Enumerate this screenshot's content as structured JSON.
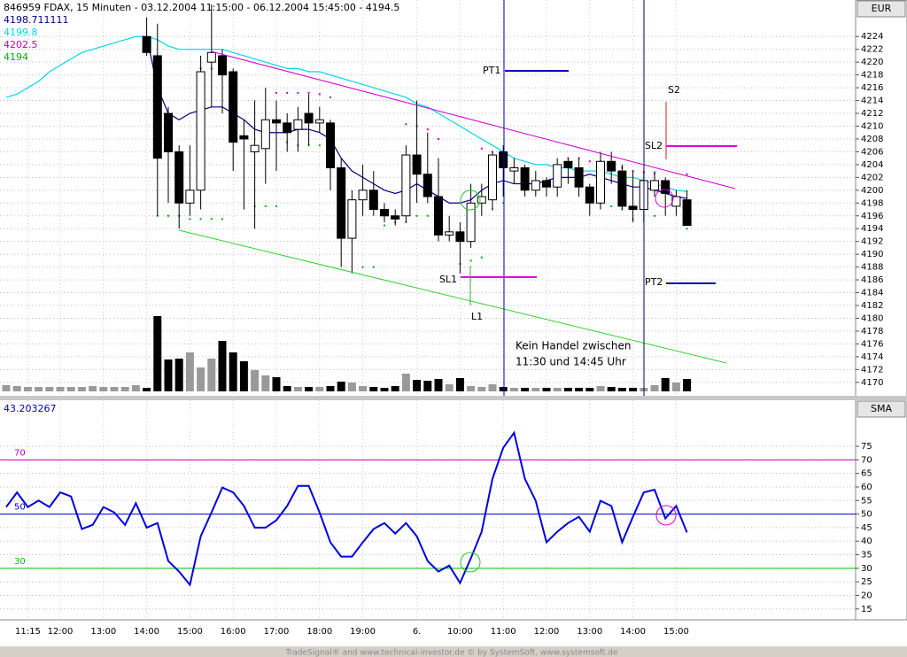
{
  "chart_data": {
    "type": "candlestick",
    "title": "846959 FDAX, 15 Minuten - 03.12.2004 11:15:00 - 06.12.2004 15:45:00 - 4194.5",
    "currency": "EUR",
    "indicator_title": "SMA",
    "footer": "TradeSignal® and www.technical-investor.de © by SystemSoft, www.systemsoft.de",
    "categories": [
      null,
      null,
      "11:15",
      null,
      null,
      "12:00",
      null,
      null,
      null,
      "13:00",
      null,
      null,
      null,
      "14:00",
      null,
      null,
      null,
      "15:00",
      null,
      null,
      null,
      "16:00",
      null,
      null,
      null,
      "17:00",
      null,
      null,
      null,
      "18:00",
      null,
      null,
      null,
      "19:00",
      null,
      null,
      null,
      null,
      "6.",
      null,
      null,
      null,
      "10:00",
      null,
      null,
      null,
      "11:00",
      null,
      null,
      null,
      "12:00",
      null,
      null,
      null,
      "13:00",
      null,
      null,
      null,
      "14:00",
      null,
      null,
      null,
      "15:00",
      null
    ],
    "open": [
      null,
      null,
      null,
      null,
      null,
      null,
      null,
      null,
      null,
      null,
      null,
      null,
      null,
      4224,
      4221,
      4212,
      4206,
      4198,
      4200,
      4220,
      4221,
      4218.5,
      4208.5,
      4206,
      4206.5,
      4211,
      4210.5,
      4209.5,
      4212,
      4210.5,
      4210.5,
      4203.5,
      4192.5,
      4198.5,
      4200,
      4197,
      4196,
      4196,
      4205.5,
      4202.5,
      4199,
      4193,
      4193.5,
      4192,
      4198,
      4198.5,
      4206,
      4203,
      4203.5,
      4200,
      4201.5,
      4200.5,
      4204.5,
      4203.5,
      4200.5,
      4198,
      4204.5,
      4203,
      4197.5,
      4197,
      4200,
      4201.5,
      4197.5,
      4198.5
    ],
    "high": [
      null,
      null,
      null,
      null,
      null,
      null,
      null,
      null,
      null,
      null,
      null,
      null,
      null,
      4227,
      4226,
      4213,
      4207,
      4207,
      4221,
      4229,
      4222,
      4219,
      4211,
      4214,
      4216,
      4214,
      4212,
      4213,
      4215,
      4213,
      4211,
      4205,
      4200,
      4204,
      4203,
      4198,
      4197,
      4207,
      4214,
      4209,
      4205,
      4196,
      4195,
      4201,
      4201,
      4206,
      4207,
      4205,
      4204,
      4203,
      4202,
      4205,
      4205,
      4205,
      4201,
      4206,
      4206,
      4204,
      4203,
      4203,
      4203,
      4202,
      4200,
      4200
    ],
    "low": [
      null,
      null,
      null,
      null,
      null,
      null,
      null,
      null,
      null,
      null,
      null,
      null,
      null,
      4221,
      4196,
      4198,
      4194,
      4196,
      4197,
      4213,
      4212,
      4203,
      4197,
      4194,
      4201,
      4203,
      4206,
      4206,
      4207,
      4209,
      4200,
      4188,
      4187,
      4196,
      4196,
      4195,
      4194.5,
      4195,
      4198,
      4198,
      4192,
      4192,
      4187,
      4191,
      4196,
      4197,
      4199,
      4201,
      4199,
      4199,
      4199,
      4199,
      4201,
      4199,
      4196,
      4197,
      4201,
      4197,
      4195,
      4195,
      4199,
      4196,
      4196,
      4194.5
    ],
    "close": [
      null,
      null,
      null,
      null,
      null,
      null,
      null,
      null,
      null,
      null,
      null,
      null,
      null,
      4221.5,
      4205,
      4206,
      4198,
      4200,
      4218.5,
      4221.5,
      4218,
      4207.5,
      4208,
      4207,
      4211,
      4210.5,
      4209,
      4211,
      4210.5,
      4211,
      4203.5,
      4192.5,
      4198.5,
      4200,
      4197,
      4196,
      4195.5,
      4205.5,
      4202.5,
      4199,
      4193,
      4193.5,
      4192,
      4198,
      4199,
      4205.5,
      4203.5,
      4203.5,
      4200,
      4201.5,
      4200.5,
      4204,
      4203.5,
      4200.5,
      4198,
      4204.5,
      4203,
      4197.5,
      4197,
      4201.5,
      4201.5,
      4199.5,
      4199,
      4194.5
    ],
    "volume": [
      7,
      6,
      5,
      5,
      5,
      5,
      5,
      5,
      6,
      5,
      5,
      5,
      7,
      4,
      85,
      36,
      37,
      44,
      27,
      37,
      57,
      44,
      34,
      24,
      18,
      16,
      6,
      5,
      5,
      5,
      6,
      11,
      10,
      6,
      5,
      4,
      6,
      20,
      13,
      12,
      14,
      8,
      15,
      6,
      5,
      8,
      5,
      4,
      4,
      4,
      4,
      4,
      4,
      4,
      4,
      6,
      5,
      4,
      4,
      4,
      7,
      15,
      10,
      14
    ],
    "up_color": "#ffffff",
    "down_color": "#000000",
    "volume_up_color": "#9a9a9a",
    "volume_down_color": "#000000",
    "overlays": [
      {
        "name": "4198.711111",
        "color": "#000080",
        "style": "line",
        "values": [
          null,
          null,
          null,
          null,
          null,
          null,
          null,
          null,
          null,
          null,
          null,
          null,
          null,
          4224,
          4216,
          4212,
          4211,
          4212,
          4212.5,
          4213,
          4213,
          4212,
          4211,
          4209.5,
          4209,
          4209,
          4209,
          4209.5,
          4209.5,
          4209,
          4208,
          4205,
          4203,
          4202,
          4201,
          4200,
          4199.5,
          4200,
          4201,
          4200,
          4199,
          4198,
          4198,
          4198.5,
          4200,
          4201,
          4201.5,
          4201,
          4201,
          4201,
          4201.5,
          4202,
          4202,
          4202,
          4202.5,
          4202,
          4201.5,
          4201,
          4200.5,
          4200.5,
          4200,
          4199.5,
          4199,
          4198.711111
        ]
      },
      {
        "name": "4199.8",
        "color": "#00d8e8",
        "style": "line",
        "values": [
          4214.5,
          4215,
          4216,
          4217,
          4218.5,
          4219.5,
          4220.5,
          4221.5,
          4222,
          4222.5,
          4223,
          4223.5,
          4224,
          4224,
          4223.5,
          4222.5,
          4222,
          4222,
          4222,
          4222,
          4222,
          4221.5,
          4221,
          4220.5,
          4220,
          4219.5,
          4219,
          4219,
          4218.5,
          4218.5,
          4218,
          4217.5,
          4217,
          4216.5,
          4216,
          4215.5,
          4215,
          4214.5,
          4213.5,
          4213,
          4212,
          4211,
          4210,
          4209,
          4208,
          4207,
          4206,
          4205,
          4204.5,
          4204,
          4204,
          4203.5,
          4203.5,
          4203,
          4203,
          4203,
          4202.5,
          4202,
          4202,
          4201.5,
          4201,
          4200.5,
          4200,
          4199.8
        ]
      },
      {
        "name": "4202.5",
        "color": "#c000c0",
        "style": "dots",
        "values": [
          null,
          null,
          null,
          null,
          null,
          null,
          null,
          null,
          null,
          null,
          null,
          null,
          null,
          null,
          null,
          null,
          null,
          null,
          4219,
          4219,
          4219,
          null,
          null,
          null,
          null,
          4215.2,
          4215.2,
          4215.2,
          4215.2,
          4215,
          4214.5,
          null,
          null,
          null,
          null,
          null,
          null,
          4210.3,
          4210,
          4209.5,
          4208,
          null,
          null,
          null,
          4206.5,
          4206,
          4205,
          null,
          null,
          null,
          null,
          null,
          4205,
          4205,
          4204.5,
          4204.5,
          4204,
          4203.5,
          4203,
          4202.8,
          4202.6,
          null,
          null,
          4202.5
        ]
      },
      {
        "name": "4194",
        "color": "#00b000",
        "style": "dots",
        "values": [
          null,
          null,
          null,
          null,
          null,
          null,
          null,
          null,
          null,
          null,
          null,
          null,
          null,
          null,
          4196,
          4196,
          4196,
          4195.5,
          4195.5,
          4195.5,
          4195.5,
          null,
          null,
          4197.5,
          4197.5,
          4197.5,
          4207.5,
          4207,
          4207,
          4207,
          4206.5,
          null,
          null,
          4188,
          4188,
          4194.5,
          4195,
          4195,
          4196,
          4196,
          null,
          null,
          4188.5,
          4189,
          4189.5,
          4197,
          4198,
          null,
          null,
          null,
          null,
          null,
          null,
          null,
          null,
          4198,
          4197.5,
          4197,
          4195.5,
          null,
          4196,
          null,
          null,
          4194
        ]
      }
    ],
    "ylim": [
      4167.9,
      4229.7
    ],
    "yticks": [
      4170,
      4172,
      4174,
      4176,
      4178,
      4180,
      4182,
      4184,
      4186,
      4188,
      4190,
      4192,
      4194,
      4196,
      4198,
      4200,
      4202,
      4204,
      4206,
      4208,
      4210,
      4212,
      4214,
      4216,
      4218,
      4220,
      4222,
      4224
    ],
    "grid": true,
    "annotations": {
      "pt1": "PT1",
      "sl1": "SL1",
      "l1": "L1",
      "s2": "S2",
      "sl2": "SL2",
      "pt2": "PT2",
      "note1": "Kein Handel zwischen",
      "note2": "11:30 und 14:45 Uhr"
    },
    "rsi": {
      "color": "#0000e0",
      "values": [
        52.6,
        58,
        52.6,
        55,
        52.6,
        58,
        56.5,
        44.5,
        46,
        52.6,
        50.6,
        46,
        54,
        45,
        46.7,
        32.7,
        28.8,
        23.9,
        41.8,
        50.6,
        59.8,
        58,
        53,
        45,
        45,
        47.7,
        53,
        60.4,
        60.4,
        50.6,
        39.6,
        34.3,
        34.3,
        39.6,
        44.5,
        46.7,
        42.8,
        46.7,
        41.8,
        32.7,
        28.8,
        31,
        24.6,
        33.7,
        43.5,
        63,
        74.5,
        80,
        63,
        54.9,
        39.6,
        43.5,
        46.7,
        49,
        43.5,
        54.9,
        53,
        39.6,
        49,
        58,
        59,
        48.4,
        53,
        43.203267
      ],
      "levels": [
        {
          "value": 70,
          "color": "#c000c0"
        },
        {
          "value": 50,
          "color": "#0000c0"
        },
        {
          "value": 30,
          "color": "#00c000"
        }
      ],
      "ylim": [
        11,
        92
      ],
      "yticks": [
        15,
        20,
        25,
        30,
        35,
        40,
        45,
        50,
        55,
        60,
        65,
        70,
        75
      ]
    }
  }
}
